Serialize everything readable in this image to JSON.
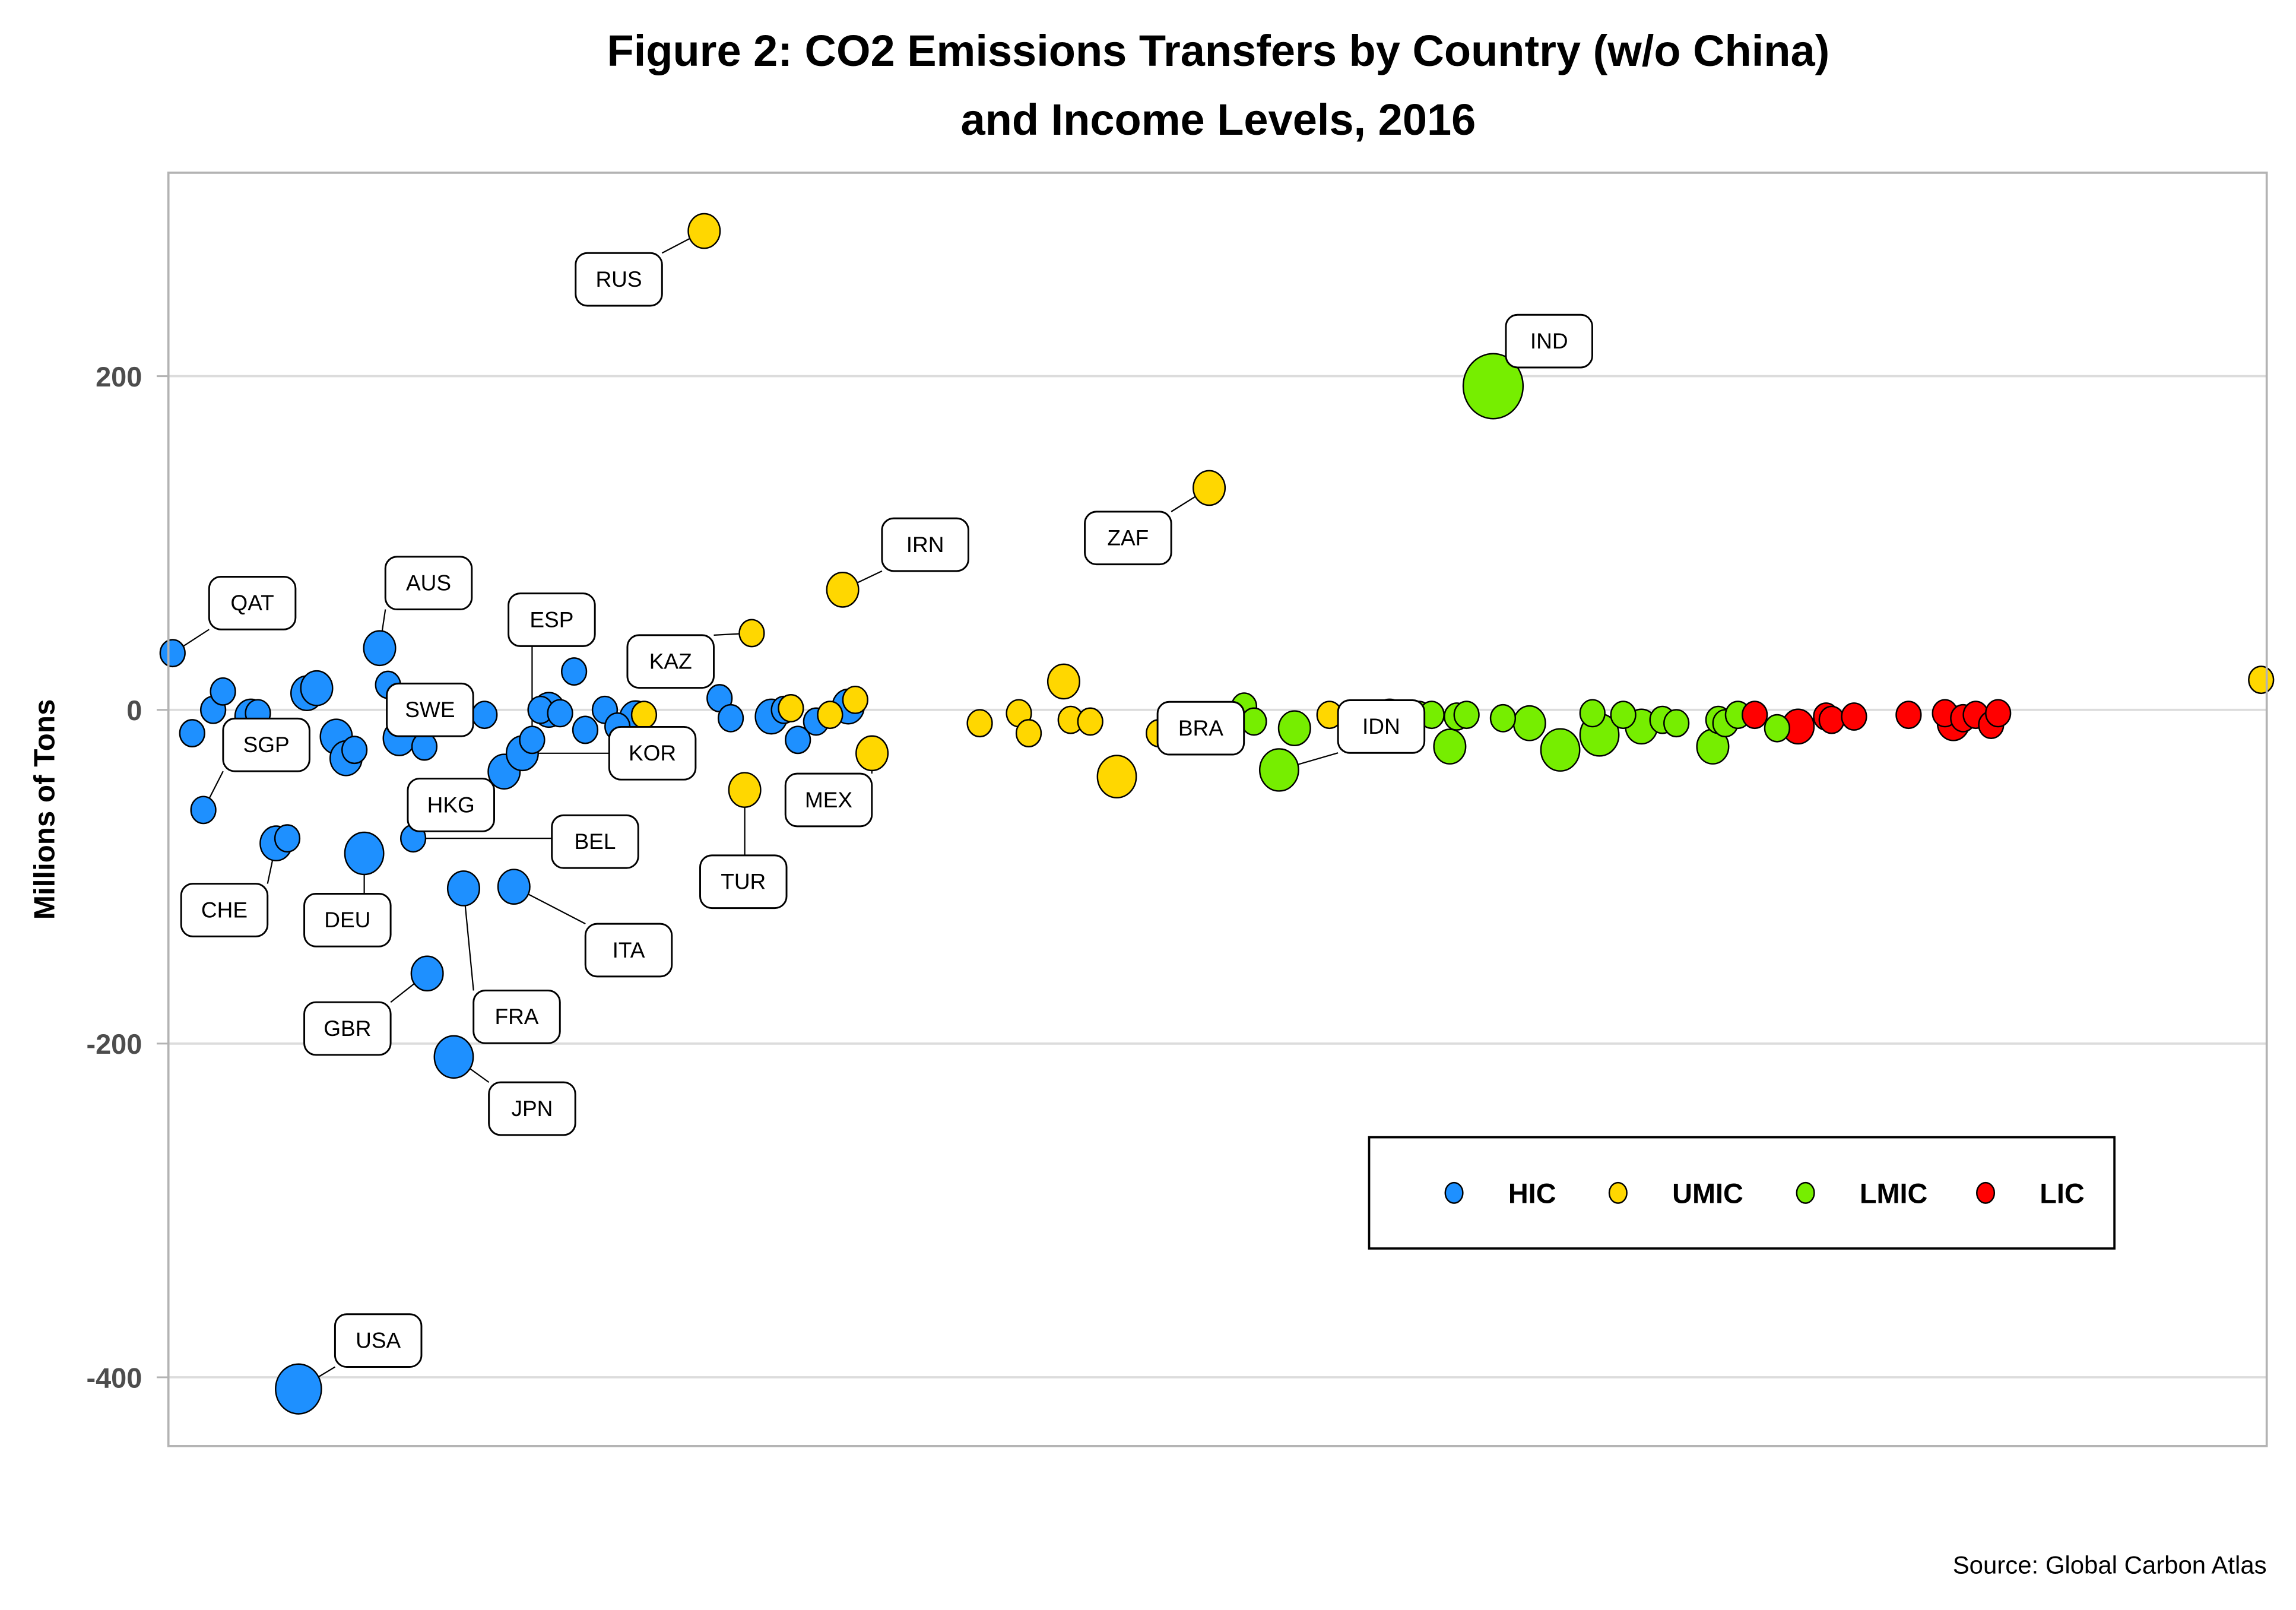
{
  "chart_data": {
    "type": "scatter",
    "title": "Figure 2: CO2 Emissions Transfers by Country (w/o China)",
    "subtitle": "and Income Levels, 2016",
    "xlabel": "",
    "ylabel": "Millions of Tons",
    "ylim": [
      -440,
      320
    ],
    "xlim": [
      0,
      150
    ],
    "yticks": [
      200,
      0,
      -200,
      -400
    ],
    "ytick_labels": [
      "200",
      "0",
      "-200",
      "-400"
    ],
    "grid": "horizontal",
    "caption": "Source: Global Carbon Atlas",
    "legend": {
      "placement": "bottom-right",
      "entries": [
        {
          "key": "HIC",
          "label": "HIC",
          "color": "#1E90FF"
        },
        {
          "key": "UMIC",
          "label": "UMIC",
          "color": "#FFD700"
        },
        {
          "key": "LMIC",
          "label": "LMIC",
          "color": "#76EE00"
        },
        {
          "key": "LIC",
          "label": "LIC",
          "color": "#FF0000"
        }
      ]
    },
    "points": [
      {
        "x": 0.3,
        "y": 34,
        "group": "HIC",
        "size": 2,
        "label": "QAT",
        "lx": 6,
        "ly": 64
      },
      {
        "x": 1.7,
        "y": -14,
        "group": "HIC",
        "size": 2
      },
      {
        "x": 2.5,
        "y": -60,
        "group": "HIC",
        "size": 2,
        "label": "SGP",
        "lx": 7,
        "ly": -21
      },
      {
        "x": 3.2,
        "y": 0,
        "group": "HIC",
        "size": 2
      },
      {
        "x": 3.9,
        "y": 11,
        "group": "HIC",
        "size": 2
      },
      {
        "x": 5.9,
        "y": -4,
        "group": "HIC",
        "size": 3
      },
      {
        "x": 6.4,
        "y": -2,
        "group": "HIC",
        "size": 2
      },
      {
        "x": 7.7,
        "y": -80,
        "group": "HIC",
        "size": 3,
        "label": "CHE",
        "lx": 4,
        "ly": -120
      },
      {
        "x": 8.5,
        "y": -77,
        "group": "HIC",
        "size": 2
      },
      {
        "x": 9.3,
        "y": -407,
        "group": "HIC",
        "size": 5,
        "label": "USA",
        "lx": 15,
        "ly": -378
      },
      {
        "x": 9.9,
        "y": 10,
        "group": "HIC",
        "size": 3
      },
      {
        "x": 10.6,
        "y": 13,
        "group": "HIC",
        "size": 3
      },
      {
        "x": 12.0,
        "y": -16,
        "group": "HIC",
        "size": 3
      },
      {
        "x": 12.7,
        "y": -29,
        "group": "HIC",
        "size": 3
      },
      {
        "x": 13.3,
        "y": -24,
        "group": "HIC",
        "size": 2
      },
      {
        "x": 14.0,
        "y": -86,
        "group": "HIC",
        "size": 4,
        "label": "DEU",
        "lx": 12.8,
        "ly": -126
      },
      {
        "x": 15.1,
        "y": 37,
        "group": "HIC",
        "size": 3,
        "label": "AUS",
        "lx": 18.6,
        "ly": 76
      },
      {
        "x": 15.7,
        "y": 15,
        "group": "HIC",
        "size": 2
      },
      {
        "x": 16.5,
        "y": -17,
        "group": "HIC",
        "size": 3,
        "label": "SWE",
        "lx": 18.7,
        "ly": 0
      },
      {
        "x": 17.5,
        "y": -77,
        "group": "HIC",
        "size": 2,
        "label": "BEL",
        "lx": 30.5,
        "ly": -79
      },
      {
        "x": 18.3,
        "y": -22,
        "group": "HIC",
        "size": 2
      },
      {
        "x": 18.5,
        "y": -158,
        "group": "HIC",
        "size": 3,
        "label": "GBR",
        "lx": 12.8,
        "ly": -191
      },
      {
        "x": 19.9,
        "y": -3,
        "group": "HIC",
        "size": 2
      },
      {
        "x": 20.4,
        "y": -208,
        "group": "HIC",
        "size": 4,
        "label": "JPN",
        "lx": 26,
        "ly": -239
      },
      {
        "x": 21.1,
        "y": -107,
        "group": "HIC",
        "size": 3,
        "label": "FRA",
        "lx": 24.9,
        "ly": -184
      },
      {
        "x": 22.6,
        "y": -3,
        "group": "HIC",
        "size": 2
      },
      {
        "x": 24.0,
        "y": -37,
        "group": "HIC",
        "size": 3,
        "label": "HKG",
        "lx": 20.2,
        "ly": -57
      },
      {
        "x": 24.7,
        "y": -106,
        "group": "HIC",
        "size": 3,
        "label": "ITA",
        "lx": 32.9,
        "ly": -144
      },
      {
        "x": 25.3,
        "y": -26,
        "group": "HIC",
        "size": 3,
        "label": "KOR",
        "lx": 34.6,
        "ly": -26
      },
      {
        "x": 26.0,
        "y": -18,
        "group": "HIC",
        "size": 2,
        "label": "ESP",
        "lx": 27.4,
        "ly": 54
      },
      {
        "x": 26.6,
        "y": 0,
        "group": "HIC",
        "size": 2
      },
      {
        "x": 27.2,
        "y": 0,
        "group": "HIC",
        "size": 3
      },
      {
        "x": 28.0,
        "y": -2,
        "group": "HIC",
        "size": 2
      },
      {
        "x": 29.0,
        "y": 23,
        "group": "HIC",
        "size": 2
      },
      {
        "x": 29.8,
        "y": -12,
        "group": "HIC",
        "size": 2
      },
      {
        "x": 31.2,
        "y": 0,
        "group": "HIC",
        "size": 2
      },
      {
        "x": 32.1,
        "y": -10,
        "group": "HIC",
        "size": 2
      },
      {
        "x": 33.4,
        "y": -5,
        "group": "HIC",
        "size": 3
      },
      {
        "x": 34.0,
        "y": -3,
        "group": "UMIC",
        "size": 2
      },
      {
        "x": 38.3,
        "y": 287,
        "group": "UMIC",
        "size": 3,
        "label": "RUS",
        "lx": 32.2,
        "ly": 258
      },
      {
        "x": 39.4,
        "y": 7,
        "group": "HIC",
        "size": 2
      },
      {
        "x": 40.2,
        "y": -5,
        "group": "HIC",
        "size": 2
      },
      {
        "x": 41.2,
        "y": -48,
        "group": "UMIC",
        "size": 3,
        "label": "TUR",
        "lx": 41.1,
        "ly": -103
      },
      {
        "x": 41.7,
        "y": 46,
        "group": "UMIC",
        "size": 2,
        "label": "KAZ",
        "lx": 35.9,
        "ly": 29
      },
      {
        "x": 43.1,
        "y": -4,
        "group": "HIC",
        "size": 3
      },
      {
        "x": 44.0,
        "y": 0,
        "group": "HIC",
        "size": 2
      },
      {
        "x": 44.5,
        "y": 1,
        "group": "UMIC",
        "size": 2
      },
      {
        "x": 45.0,
        "y": -18,
        "group": "HIC",
        "size": 2
      },
      {
        "x": 46.3,
        "y": -7,
        "group": "HIC",
        "size": 2
      },
      {
        "x": 47.3,
        "y": -3,
        "group": "UMIC",
        "size": 2
      },
      {
        "x": 48.2,
        "y": 72,
        "group": "UMIC",
        "size": 3,
        "label": "IRN",
        "lx": 54.1,
        "ly": 99
      },
      {
        "x": 49.1,
        "y": 6,
        "group": "UMIC",
        "size": 2
      },
      {
        "x": 48.6,
        "y": 2,
        "group": "HIC",
        "size": 3
      },
      {
        "x": 50.3,
        "y": -26,
        "group": "UMIC",
        "size": 3,
        "label": "MEX",
        "lx": 47.2,
        "ly": -54
      },
      {
        "x": 58.0,
        "y": -8,
        "group": "UMIC",
        "size": 2
      },
      {
        "x": 60.8,
        "y": -2,
        "group": "UMIC",
        "size": 2
      },
      {
        "x": 61.5,
        "y": -14,
        "group": "UMIC",
        "size": 2
      },
      {
        "x": 64.0,
        "y": 17,
        "group": "UMIC",
        "size": 3
      },
      {
        "x": 64.5,
        "y": -6,
        "group": "UMIC",
        "size": 2
      },
      {
        "x": 65.9,
        "y": -7,
        "group": "UMIC",
        "size": 2
      },
      {
        "x": 67.8,
        "y": -40,
        "group": "UMIC",
        "size": 4
      },
      {
        "x": 70.8,
        "y": -14,
        "group": "UMIC",
        "size": 2,
        "label": "BRA",
        "lx": 73.8,
        "ly": -11
      },
      {
        "x": 74.4,
        "y": 133,
        "group": "UMIC",
        "size": 3,
        "label": "ZAF",
        "lx": 68.6,
        "ly": 103
      },
      {
        "x": 75.0,
        "y": -11,
        "group": "LMIC",
        "size": 2
      },
      {
        "x": 75.9,
        "y": -5,
        "group": "UMIC",
        "size": 2
      },
      {
        "x": 76.5,
        "y": -2,
        "group": "UMIC",
        "size": 2
      },
      {
        "x": 76.9,
        "y": 2,
        "group": "LMIC",
        "size": 2
      },
      {
        "x": 77.6,
        "y": -7,
        "group": "LMIC",
        "size": 2
      },
      {
        "x": 79.4,
        "y": -36,
        "group": "LMIC",
        "size": 4,
        "label": "IDN",
        "lx": 86.7,
        "ly": -10
      },
      {
        "x": 80.5,
        "y": -11,
        "group": "LMIC",
        "size": 3
      },
      {
        "x": 83.0,
        "y": -3,
        "group": "UMIC",
        "size": 2
      },
      {
        "x": 86.5,
        "y": -6,
        "group": "UMIC",
        "size": 2
      },
      {
        "x": 87.3,
        "y": -4,
        "group": "LMIC",
        "size": 3
      },
      {
        "x": 88.0,
        "y": -8,
        "group": "UMIC",
        "size": 2
      },
      {
        "x": 89.4,
        "y": -3,
        "group": "LMIC",
        "size": 2
      },
      {
        "x": 94.7,
        "y": 194,
        "group": "LMIC",
        "size": 7,
        "label": "IND",
        "lx": 98.7,
        "ly": 221
      },
      {
        "x": 90.3,
        "y": -3,
        "group": "LMIC",
        "size": 2
      },
      {
        "x": 91.6,
        "y": -22,
        "group": "LMIC",
        "size": 3
      },
      {
        "x": 92.1,
        "y": -4,
        "group": "LMIC",
        "size": 2
      },
      {
        "x": 92.8,
        "y": -3,
        "group": "LMIC",
        "size": 2
      },
      {
        "x": 95.4,
        "y": -5,
        "group": "LMIC",
        "size": 2
      },
      {
        "x": 97.3,
        "y": -8,
        "group": "LMIC",
        "size": 3
      },
      {
        "x": 99.5,
        "y": -24,
        "group": "LMIC",
        "size": 4
      },
      {
        "x": 101.8,
        "y": -2,
        "group": "LMIC",
        "size": 2
      },
      {
        "x": 102.3,
        "y": -15,
        "group": "LMIC",
        "size": 4
      },
      {
        "x": 104.0,
        "y": -3,
        "group": "LMIC",
        "size": 2
      },
      {
        "x": 105.3,
        "y": -10,
        "group": "LMIC",
        "size": 3
      },
      {
        "x": 106.8,
        "y": -6,
        "group": "LMIC",
        "size": 2
      },
      {
        "x": 107.8,
        "y": -8,
        "group": "LMIC",
        "size": 2
      },
      {
        "x": 110.4,
        "y": -22,
        "group": "LMIC",
        "size": 3
      },
      {
        "x": 110.8,
        "y": -6,
        "group": "LMIC",
        "size": 2
      },
      {
        "x": 111.3,
        "y": -8,
        "group": "LMIC",
        "size": 2
      },
      {
        "x": 112.2,
        "y": -3,
        "group": "LMIC",
        "size": 2
      },
      {
        "x": 113.4,
        "y": -3,
        "group": "LIC",
        "size": 2
      },
      {
        "x": 115.0,
        "y": -11,
        "group": "LMIC",
        "size": 2
      },
      {
        "x": 116.5,
        "y": -10,
        "group": "LIC",
        "size": 3
      },
      {
        "x": 118.5,
        "y": -4,
        "group": "LIC",
        "size": 2
      },
      {
        "x": 118.9,
        "y": -6,
        "group": "LIC",
        "size": 2
      },
      {
        "x": 120.5,
        "y": -4,
        "group": "LIC",
        "size": 2
      },
      {
        "x": 124.4,
        "y": -3,
        "group": "LIC",
        "size": 2
      },
      {
        "x": 127.0,
        "y": -2,
        "group": "LIC",
        "size": 2
      },
      {
        "x": 127.6,
        "y": -8,
        "group": "LIC",
        "size": 3
      },
      {
        "x": 128.3,
        "y": -5,
        "group": "LIC",
        "size": 2
      },
      {
        "x": 129.2,
        "y": -3,
        "group": "LIC",
        "size": 2
      },
      {
        "x": 130.3,
        "y": -9,
        "group": "LIC",
        "size": 2
      },
      {
        "x": 130.8,
        "y": -2,
        "group": "LIC",
        "size": 2
      },
      {
        "x": 149.6,
        "y": 18,
        "group": "UMIC",
        "size": 2
      }
    ]
  }
}
